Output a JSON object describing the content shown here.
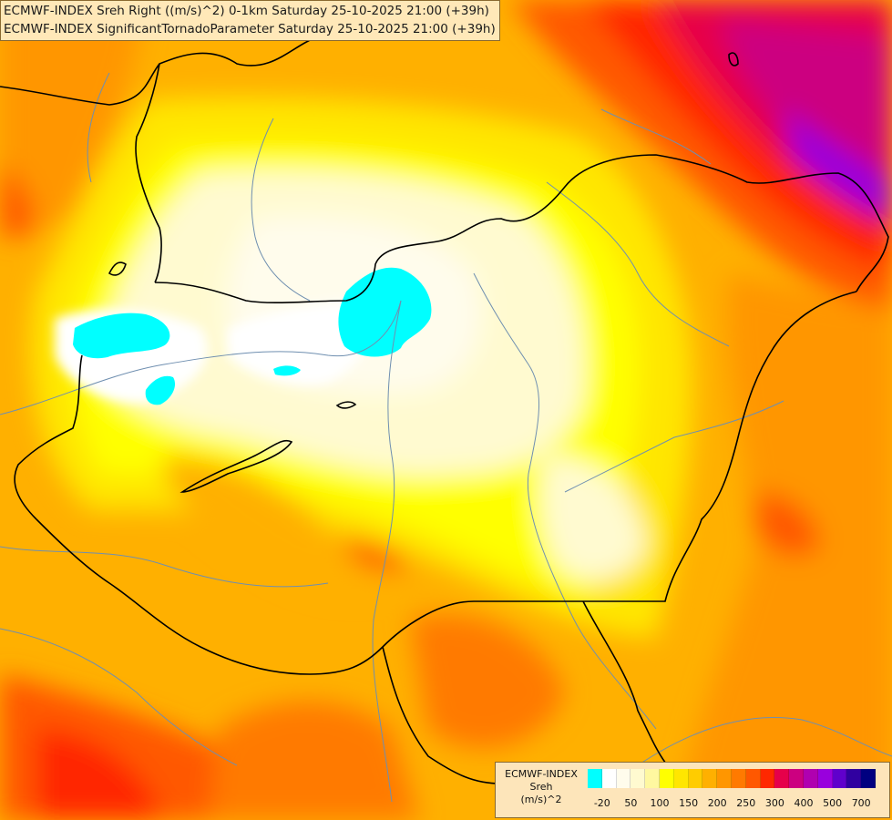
{
  "title": {
    "line1": "ECMWF-INDEX Sreh Right ((m/s)^2) 0-1km Saturday 25-10-2025 21:00 (+39h)",
    "line2": "ECMWF-INDEX SignificantTornadoParameter Saturday 25-10-2025 21:00 (+39h)"
  },
  "legend": {
    "line1": "ECMWF-INDEX",
    "line2": "Sreh",
    "line3": "(m/s)^2",
    "colors": [
      "#00ffff",
      "#ffffff",
      "#fffcec",
      "#fffad0",
      "#fff8a0",
      "#ffff00",
      "#ffe600",
      "#ffcc00",
      "#ffb000",
      "#ff9600",
      "#ff7a00",
      "#ff5800",
      "#ff2800",
      "#e6004a",
      "#cc0080",
      "#b000b0",
      "#9900dd",
      "#6000cc",
      "#3000a0",
      "#000080"
    ],
    "ticks": [
      {
        "label": "-20",
        "pos": 1
      },
      {
        "label": "50",
        "pos": 3
      },
      {
        "label": "100",
        "pos": 5
      },
      {
        "label": "150",
        "pos": 7
      },
      {
        "label": "200",
        "pos": 9
      },
      {
        "label": "250",
        "pos": 11
      },
      {
        "label": "300",
        "pos": 13
      },
      {
        "label": "400",
        "pos": 15
      },
      {
        "label": "500",
        "pos": 17
      },
      {
        "label": "700",
        "pos": 19
      }
    ]
  }
}
